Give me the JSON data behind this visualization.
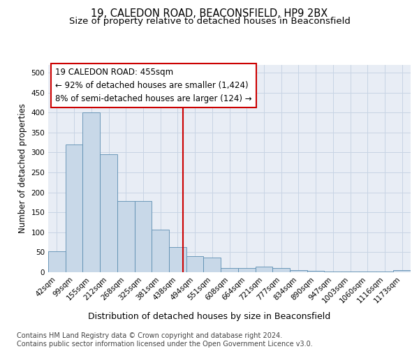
{
  "title": "19, CALEDON ROAD, BEACONSFIELD, HP9 2BX",
  "subtitle": "Size of property relative to detached houses in Beaconsfield",
  "xlabel": "Distribution of detached houses by size in Beaconsfield",
  "ylabel": "Number of detached properties",
  "footer_line1": "Contains HM Land Registry data © Crown copyright and database right 2024.",
  "footer_line2": "Contains public sector information licensed under the Open Government Licence v3.0.",
  "annotation_title": "19 CALEDON ROAD: 455sqm",
  "annotation_line1": "← 92% of detached houses are smaller (1,424)",
  "annotation_line2": "8% of semi-detached houses are larger (124) →",
  "bar_color": "#c8d8e8",
  "bar_edge_color": "#5b8db0",
  "vline_color": "#cc0000",
  "vline_x": 7.3,
  "categories": [
    "42sqm",
    "99sqm",
    "155sqm",
    "212sqm",
    "268sqm",
    "325sqm",
    "381sqm",
    "438sqm",
    "494sqm",
    "551sqm",
    "608sqm",
    "664sqm",
    "721sqm",
    "777sqm",
    "834sqm",
    "890sqm",
    "947sqm",
    "1003sqm",
    "1060sqm",
    "1116sqm",
    "1173sqm"
  ],
  "values": [
    52,
    320,
    400,
    295,
    178,
    178,
    107,
    63,
    40,
    37,
    11,
    10,
    14,
    10,
    6,
    3,
    1,
    1,
    1,
    1,
    5
  ],
  "ylim": [
    0,
    520
  ],
  "yticks": [
    0,
    50,
    100,
    150,
    200,
    250,
    300,
    350,
    400,
    450,
    500
  ],
  "grid_color": "#c8d4e4",
  "background_color": "#e8edf5",
  "fig_background": "#ffffff",
  "title_fontsize": 10.5,
  "subtitle_fontsize": 9.5,
  "ylabel_fontsize": 8.5,
  "xlabel_fontsize": 9,
  "tick_fontsize": 7.5,
  "footer_fontsize": 7,
  "annotation_fontsize": 8.5
}
